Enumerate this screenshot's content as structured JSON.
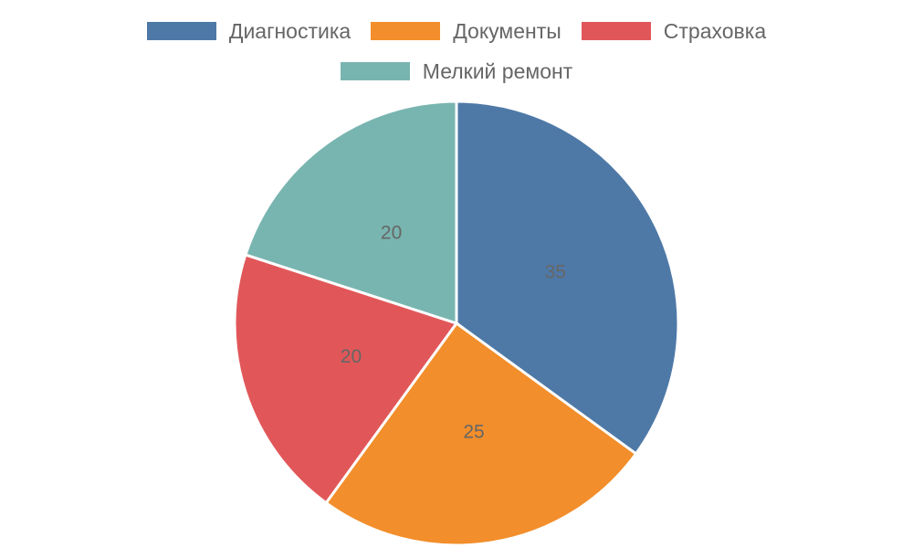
{
  "chart_data": {
    "type": "pie",
    "categories": [
      "Диагностика",
      "Документы",
      "Страховка",
      "Мелкий ремонт"
    ],
    "values": [
      35,
      25,
      20,
      20
    ],
    "colors": [
      "#4e79a7",
      "#f28e2b",
      "#e15759",
      "#79b5b0"
    ],
    "legend": "top"
  }
}
